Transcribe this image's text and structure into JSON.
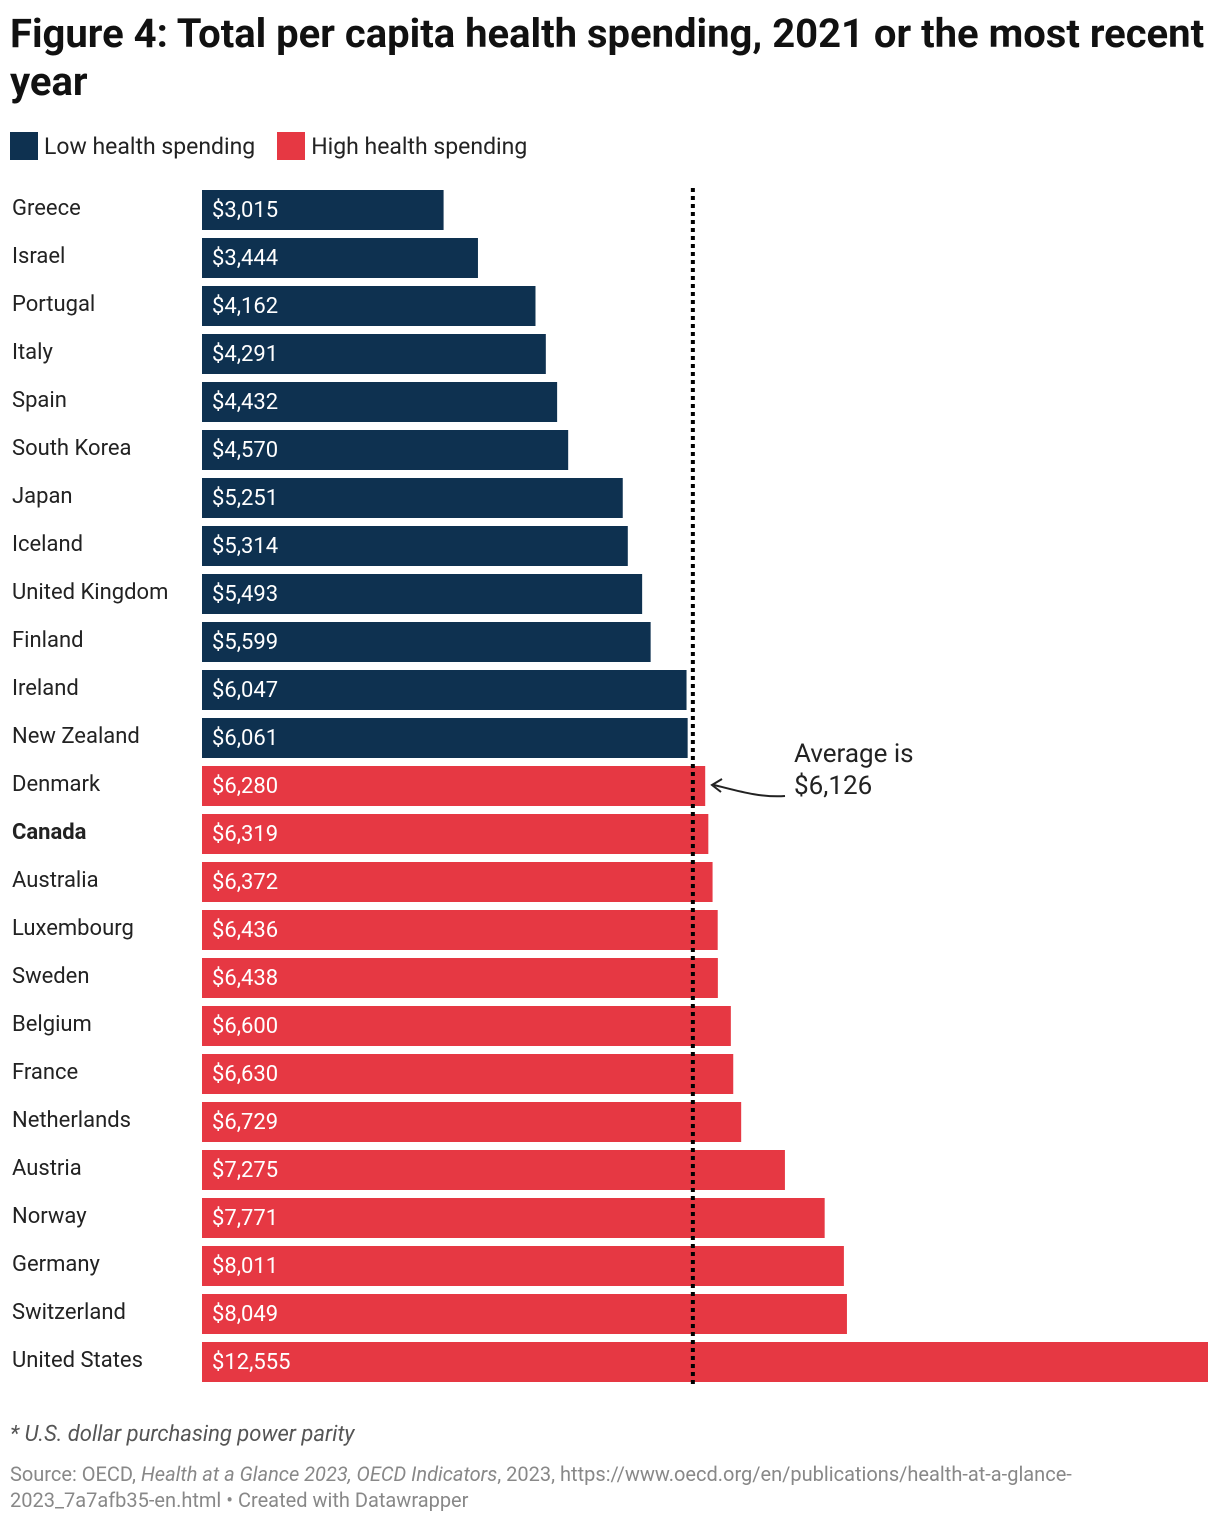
{
  "chart_data": {
    "type": "bar",
    "orientation": "horizontal",
    "title": "Figure 4: Total per capita health spending, 2021 or the most recent year",
    "categories": [
      "Greece",
      "Israel",
      "Portugal",
      "Italy",
      "Spain",
      "South Korea",
      "Japan",
      "Iceland",
      "United Kingdom",
      "Finland",
      "Ireland",
      "New Zealand",
      "Denmark",
      "Canada",
      "Australia",
      "Luxembourg",
      "Sweden",
      "Belgium",
      "France",
      "Netherlands",
      "Austria",
      "Norway",
      "Germany",
      "Switzerland",
      "United States"
    ],
    "bold": "Canada",
    "series": [
      {
        "name": "Low health spending",
        "color": "#0e3150",
        "values": [
          3015,
          3444,
          4162,
          4291,
          4432,
          4570,
          5251,
          5314,
          5493,
          5599,
          6047,
          6061,
          null,
          null,
          null,
          null,
          null,
          null,
          null,
          null,
          null,
          null,
          null,
          null,
          null
        ],
        "value_labels": [
          "$3,015",
          "$3,444",
          "$4,162",
          "$4,291",
          "$4,432",
          "$4,570",
          "$5,251",
          "$5,314",
          "$5,493",
          "$5,599",
          "$6,047",
          "$6,061",
          null,
          null,
          null,
          null,
          null,
          null,
          null,
          null,
          null,
          null,
          null,
          null,
          null
        ]
      },
      {
        "name": "High health spending",
        "color": "#e63843",
        "values": [
          null,
          null,
          null,
          null,
          null,
          null,
          null,
          null,
          null,
          null,
          null,
          null,
          6280,
          6319,
          6372,
          6436,
          6438,
          6600,
          6630,
          6729,
          7275,
          7771,
          8011,
          8049,
          12555
        ],
        "value_labels": [
          null,
          null,
          null,
          null,
          null,
          null,
          null,
          null,
          null,
          null,
          null,
          null,
          "$6,280",
          "$6,319",
          "$6,372",
          "$6,436",
          "$6,438",
          "$6,600",
          "$6,630",
          "$6,729",
          "$7,275",
          "$7,771",
          "$8,011",
          "$8,049",
          "$12,555"
        ]
      }
    ],
    "xlim": [
      0,
      12555
    ],
    "reference_line": {
      "value": 6126,
      "label": "Average is $6,126"
    },
    "note": "* U.S. dollar purchasing power parity",
    "source": {
      "prefix": "Source: OECD,",
      "publication": "Health at a Glance 2023, OECD Indicators",
      "rest": ", 2023, https://www.oecd.org/en/publications/health-at-a-glance-2023_7a7afb35-en.html • Created with Datawrapper"
    }
  }
}
